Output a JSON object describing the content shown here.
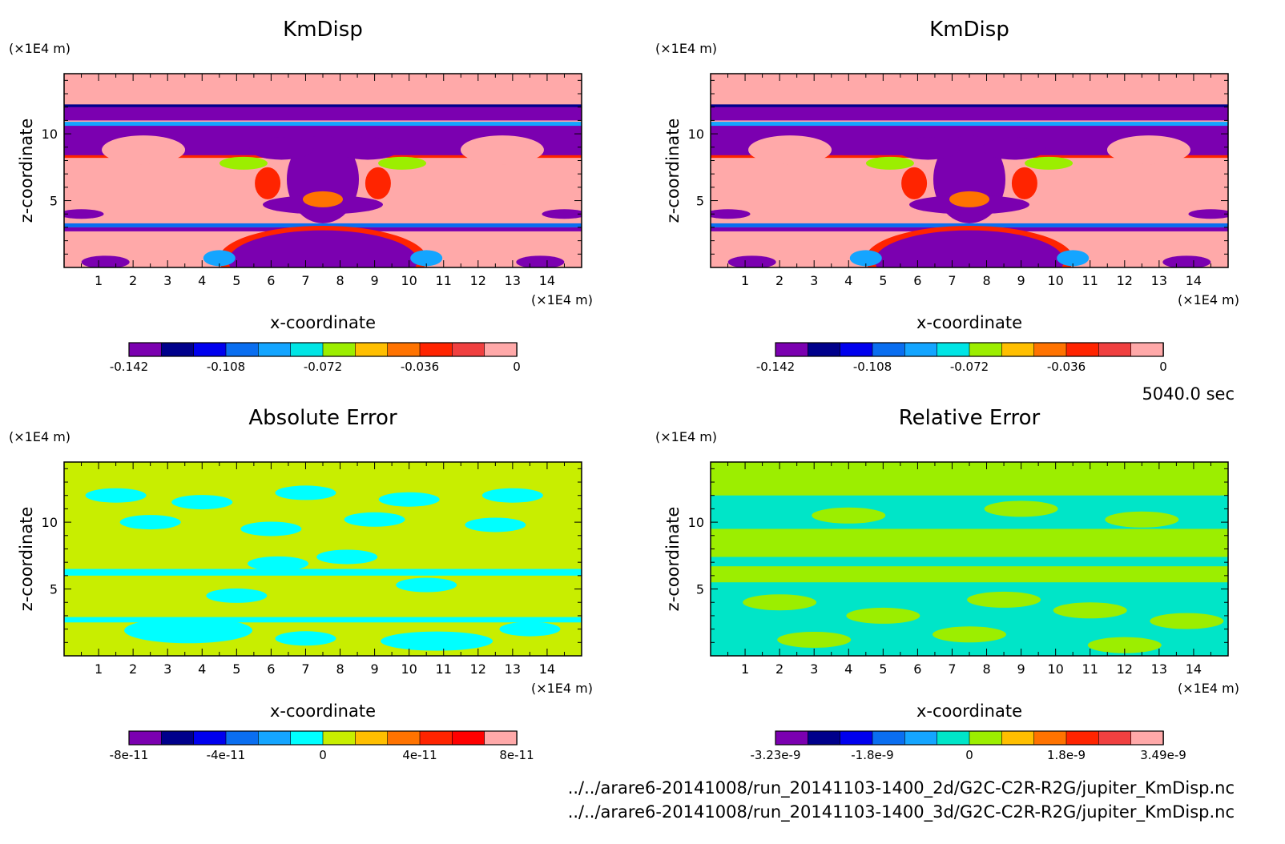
{
  "time_label": "5040.0 sec",
  "files": [
    "../../arare6-20141008/run_20141103-1400_2d/G2C-C2R-R2G/jupiter_KmDisp.nc",
    "../../arare6-20141008/run_20141103-1400_3d/G2C-C2R-R2G/jupiter_KmDisp.nc"
  ],
  "chart_data": [
    {
      "type": "heatmap",
      "title": "KmDisp",
      "xlabel": "x-coordinate",
      "ylabel": "z-coordinate",
      "x_unit": "(×1E4 m)",
      "y_unit": "(×1E4 m)",
      "xlim": [
        0,
        15
      ],
      "ylim": [
        0,
        14.5
      ],
      "x_ticks": [
        "1",
        "2",
        "3",
        "4",
        "5",
        "6",
        "7",
        "8",
        "9",
        "10",
        "11",
        "12",
        "13",
        "14"
      ],
      "y_ticks": [
        "5",
        "10"
      ],
      "colorbar": {
        "colors": [
          "#7b00b0",
          "#00008b",
          "#0000ee",
          "#0a6ef0",
          "#14a5ff",
          "#00e5e5",
          "#9cee00",
          "#ffbf00",
          "#ff7300",
          "#ff2400",
          "#f04040",
          "#ffa9a9"
        ],
        "tick_labels": [
          "-0.142",
          "-0.108",
          "-0.072",
          "-0.036",
          "0"
        ]
      }
    },
    {
      "type": "heatmap",
      "title": "KmDisp",
      "xlabel": "x-coordinate",
      "ylabel": "z-coordinate",
      "x_unit": "(×1E4 m)",
      "y_unit": "(×1E4 m)",
      "xlim": [
        0,
        15
      ],
      "ylim": [
        0,
        14.5
      ],
      "x_ticks": [
        "1",
        "2",
        "3",
        "4",
        "5",
        "6",
        "7",
        "8",
        "9",
        "10",
        "11",
        "12",
        "13",
        "14"
      ],
      "y_ticks": [
        "5",
        "10"
      ],
      "colorbar": {
        "colors": [
          "#7b00b0",
          "#00008b",
          "#0000ee",
          "#0a6ef0",
          "#14a5ff",
          "#00e5e5",
          "#9cee00",
          "#ffbf00",
          "#ff7300",
          "#ff2400",
          "#f04040",
          "#ffa9a9"
        ],
        "tick_labels": [
          "-0.142",
          "-0.108",
          "-0.072",
          "-0.036",
          "0"
        ]
      }
    },
    {
      "type": "heatmap",
      "title": "Absolute Error",
      "xlabel": "x-coordinate",
      "ylabel": "z-coordinate",
      "x_unit": "(×1E4 m)",
      "y_unit": "(×1E4 m)",
      "xlim": [
        0,
        15
      ],
      "ylim": [
        0,
        14.5
      ],
      "x_ticks": [
        "1",
        "2",
        "3",
        "4",
        "5",
        "6",
        "7",
        "8",
        "9",
        "10",
        "11",
        "12",
        "13",
        "14"
      ],
      "y_ticks": [
        "5",
        "10"
      ],
      "colorbar": {
        "colors": [
          "#7b00b0",
          "#00008b",
          "#0000ee",
          "#0a6ef0",
          "#14a5ff",
          "#00ffff",
          "#c8ee00",
          "#ffbf00",
          "#ff7300",
          "#ff2400",
          "#ff0000",
          "#ffa9a9"
        ],
        "tick_labels": [
          "-8e-11",
          "-4e-11",
          "0",
          "4e-11",
          "8e-11"
        ]
      }
    },
    {
      "type": "heatmap",
      "title": "Relative Error",
      "xlabel": "x-coordinate",
      "ylabel": "z-coordinate",
      "x_unit": "(×1E4 m)",
      "y_unit": "(×1E4 m)",
      "xlim": [
        0,
        15
      ],
      "ylim": [
        0,
        14.5
      ],
      "x_ticks": [
        "1",
        "2",
        "3",
        "4",
        "5",
        "6",
        "7",
        "8",
        "9",
        "10",
        "11",
        "12",
        "13",
        "14"
      ],
      "y_ticks": [
        "5",
        "10"
      ],
      "colorbar": {
        "colors": [
          "#7b00b0",
          "#00008b",
          "#0000ee",
          "#0a6ef0",
          "#14a5ff",
          "#00e5c8",
          "#9cee00",
          "#ffbf00",
          "#ff7300",
          "#ff2400",
          "#f04040",
          "#ffa9a9"
        ],
        "tick_labels": [
          "-3.23e-9",
          "-1.8e-9",
          "0",
          "1.8e-9",
          "3.49e-9"
        ]
      }
    }
  ]
}
